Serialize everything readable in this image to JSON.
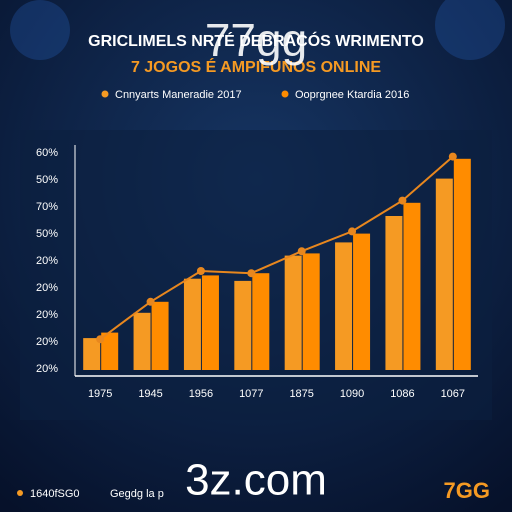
{
  "chart_data": {
    "type": "bar",
    "watermark": "77gg",
    "title": "GRICLIMELS NRTÉ DEBRACÓS WRIMENTO",
    "subtitle": "7 JOGOS É AMPIFUNOS ONLINE",
    "categories": [
      "1975",
      "1945",
      "1956",
      "1077",
      "1875",
      "1090",
      "1086",
      "1067"
    ],
    "series": [
      {
        "name": "Cnnyarts Maneradie 2017",
        "color": "#f59a23",
        "values": [
          14.5,
          26,
          41.5,
          40.5,
          52,
          58,
          70,
          87
        ]
      },
      {
        "name": "Ooprgnee Ktardia 2016",
        "color": "#ff8c00",
        "values": [
          17,
          31,
          43,
          44,
          53,
          62,
          76,
          96
        ]
      }
    ],
    "trend": {
      "color": "#e8871e",
      "values": [
        14,
        31,
        45,
        44,
        54,
        63,
        77,
        97
      ]
    },
    "ylim": [
      0,
      100
    ],
    "y_axis_labels": [
      "60%",
      "50%",
      "70%",
      "50%",
      "20%",
      "20%",
      "20%",
      "20%",
      "20%"
    ],
    "footer": {
      "site": "3z.com",
      "brand": "7GG",
      "left_code": "1640fSG0",
      "left_text": "Gegdg la p"
    }
  }
}
